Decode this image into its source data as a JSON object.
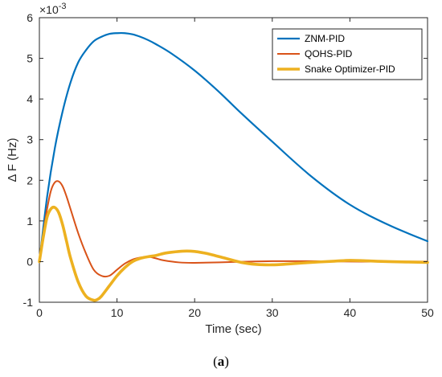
{
  "caption": {
    "open": "(",
    "letter": "a",
    "close": ")"
  },
  "chart_data": {
    "type": "line",
    "title": "",
    "xlabel": "Time (sec)",
    "ylabel": "Δ F (Hz)",
    "yexponent_label": "×10",
    "yexponent": "-3",
    "xlim": [
      0,
      50
    ],
    "ylim": [
      -1,
      6
    ],
    "xticks": [
      0,
      10,
      20,
      30,
      40,
      50
    ],
    "yticks": [
      -1,
      0,
      1,
      2,
      3,
      4,
      5,
      6
    ],
    "grid": false,
    "legend_position": "top-right",
    "series": [
      {
        "name": "ZNM-PID",
        "color": "#0072BD",
        "x": [
          0,
          1,
          2,
          3,
          4,
          5,
          6,
          7,
          8,
          9,
          10,
          11,
          12,
          13,
          14,
          15,
          17,
          20,
          23,
          26,
          30,
          35,
          40,
          45,
          50
        ],
        "y": [
          0,
          1.6,
          2.8,
          3.7,
          4.4,
          4.9,
          5.2,
          5.42,
          5.53,
          5.6,
          5.62,
          5.62,
          5.59,
          5.53,
          5.45,
          5.35,
          5.12,
          4.7,
          4.2,
          3.65,
          2.95,
          2.1,
          1.4,
          0.9,
          0.5
        ]
      },
      {
        "name": "QOHS-PID",
        "color": "#D95319",
        "x": [
          0,
          0.5,
          1,
          1.5,
          2,
          2.5,
          3,
          3.5,
          4,
          5,
          6,
          7,
          8,
          9,
          10,
          11,
          12,
          13,
          14,
          15,
          16,
          18,
          20,
          25,
          30,
          35,
          40,
          45,
          50
        ],
        "y": [
          0,
          0.7,
          1.3,
          1.75,
          1.95,
          1.97,
          1.85,
          1.6,
          1.3,
          0.7,
          0.2,
          -0.2,
          -0.35,
          -0.35,
          -0.2,
          -0.05,
          0.05,
          0.1,
          0.12,
          0.08,
          0.03,
          -0.02,
          -0.03,
          -0.01,
          0.01,
          0.01,
          0,
          0,
          0
        ]
      },
      {
        "name": "Snake Optimizer-PID",
        "color": "#EDB120",
        "x": [
          0,
          0.5,
          1,
          1.5,
          2,
          2.5,
          3,
          3.5,
          4,
          5,
          6,
          7,
          7.5,
          8,
          9,
          10,
          11,
          12,
          13,
          14,
          15,
          16,
          17,
          18,
          19,
          20,
          21,
          22,
          24,
          26,
          28,
          30,
          32,
          35,
          38,
          40,
          42,
          45,
          50
        ],
        "y": [
          0,
          0.6,
          1.1,
          1.3,
          1.33,
          1.2,
          0.9,
          0.5,
          0.1,
          -0.5,
          -0.85,
          -0.95,
          -0.93,
          -0.85,
          -0.6,
          -0.35,
          -0.15,
          0,
          0.08,
          0.12,
          0.15,
          0.2,
          0.23,
          0.25,
          0.26,
          0.25,
          0.22,
          0.18,
          0.08,
          -0.02,
          -0.07,
          -0.08,
          -0.06,
          -0.02,
          0.01,
          0.03,
          0.02,
          0,
          -0.02
        ]
      }
    ]
  }
}
